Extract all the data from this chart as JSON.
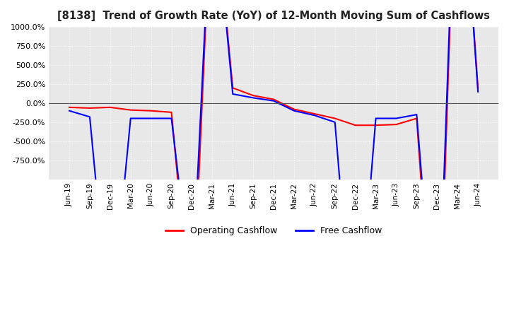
{
  "title": "[8138]  Trend of Growth Rate (YoY) of 12-Month Moving Sum of Cashflows",
  "ylim": [
    -1000,
    1000
  ],
  "yticks": [
    -750,
    -500,
    -250,
    0,
    250,
    500,
    750,
    1000
  ],
  "ytick_labels": [
    "-750.0%",
    "-500.0%",
    "-250.0%",
    "0.0%",
    "250.0%",
    "500.0%",
    "750.0%",
    "1000.0%"
  ],
  "operating_color": "#ff0000",
  "free_color": "#0000ff",
  "background_color": "#ffffff",
  "plot_bg_color": "#e8e8e8",
  "grid_color": "#ffffff",
  "legend_labels": [
    "Operating Cashflow",
    "Free Cashflow"
  ],
  "x_labels": [
    "Jun-19",
    "Sep-19",
    "Dec-19",
    "Mar-20",
    "Jun-20",
    "Sep-20",
    "Dec-20",
    "Mar-21",
    "Jun-21",
    "Sep-21",
    "Dec-21",
    "Mar-22",
    "Jun-22",
    "Sep-22",
    "Dec-22",
    "Mar-23",
    "Jun-23",
    "Sep-23",
    "Dec-23",
    "Mar-24",
    "Jun-24"
  ],
  "operating_cf": [
    -55,
    -65,
    -55,
    -90,
    -100,
    -120,
    -3000,
    3000,
    200,
    100,
    50,
    -80,
    -140,
    -200,
    -290,
    -290,
    -280,
    -200,
    -4000,
    4000,
    200
  ],
  "free_cf": [
    -100,
    -180,
    -3000,
    -200,
    -200,
    -200,
    -2500,
    3000,
    120,
    70,
    30,
    -100,
    -160,
    -250,
    -3500,
    -200,
    -200,
    -150,
    -3500,
    4000,
    150
  ]
}
